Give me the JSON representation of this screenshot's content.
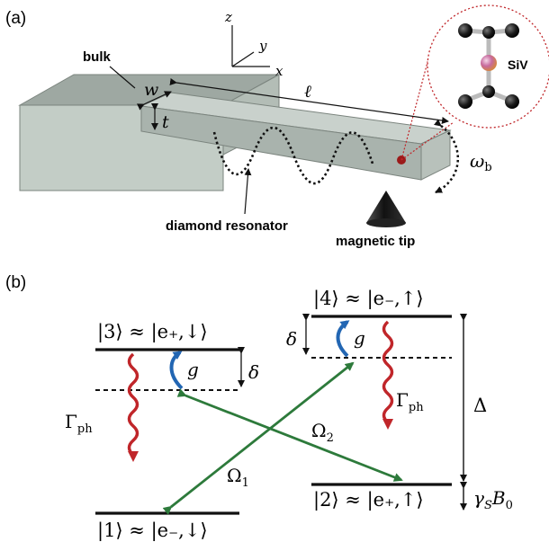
{
  "panel_a": {
    "label": "(a)",
    "bulk_label": "bulk",
    "resonator_label": "diamond resonator",
    "tip_label": "magnetic tip",
    "siv_label": "SiV",
    "axis_z": "z",
    "axis_y": "y",
    "axis_x": "x",
    "width_label": "w",
    "length_label": "ℓ",
    "thickness_label": "t",
    "omega_label": "ω",
    "omega_sub": "b"
  },
  "panel_b": {
    "label": "(b)",
    "level3": "|3⟩ ≈ |e₊,↓⟩",
    "level4": "|4⟩ ≈ |e₋,↑⟩",
    "level1": "|1⟩ ≈ |e₋,↓⟩",
    "level2": "|2⟩ ≈ |e₊,↑⟩",
    "delta_left": "δ",
    "delta_right": "δ",
    "g_left": "g",
    "g_right": "g",
    "gamma_left": "Γ",
    "gamma_left_sub": "ph",
    "gamma_right": "Γ",
    "gamma_right_sub": "ph",
    "omega1": "Ω",
    "omega1_sub": "1",
    "omega2": "Ω",
    "omega2_sub": "2",
    "big_delta": "Δ",
    "zeeman": "γ",
    "zeeman_sub": "S",
    "zeeman_b": "B",
    "zeeman_b_sub": "0"
  },
  "colors": {
    "bulk_face": "#b9c5bd",
    "bulk_top": "#9ba49e",
    "beam": "#a9b3ad",
    "beam_top": "#c7cfca",
    "level_line": "#111111",
    "coupling_green": "#2d7a3b",
    "coupling_blue": "#2266b3",
    "decay_red": "#c0262a",
    "dot_red": "#9b1a1a",
    "inset_border": "#c0262a"
  }
}
